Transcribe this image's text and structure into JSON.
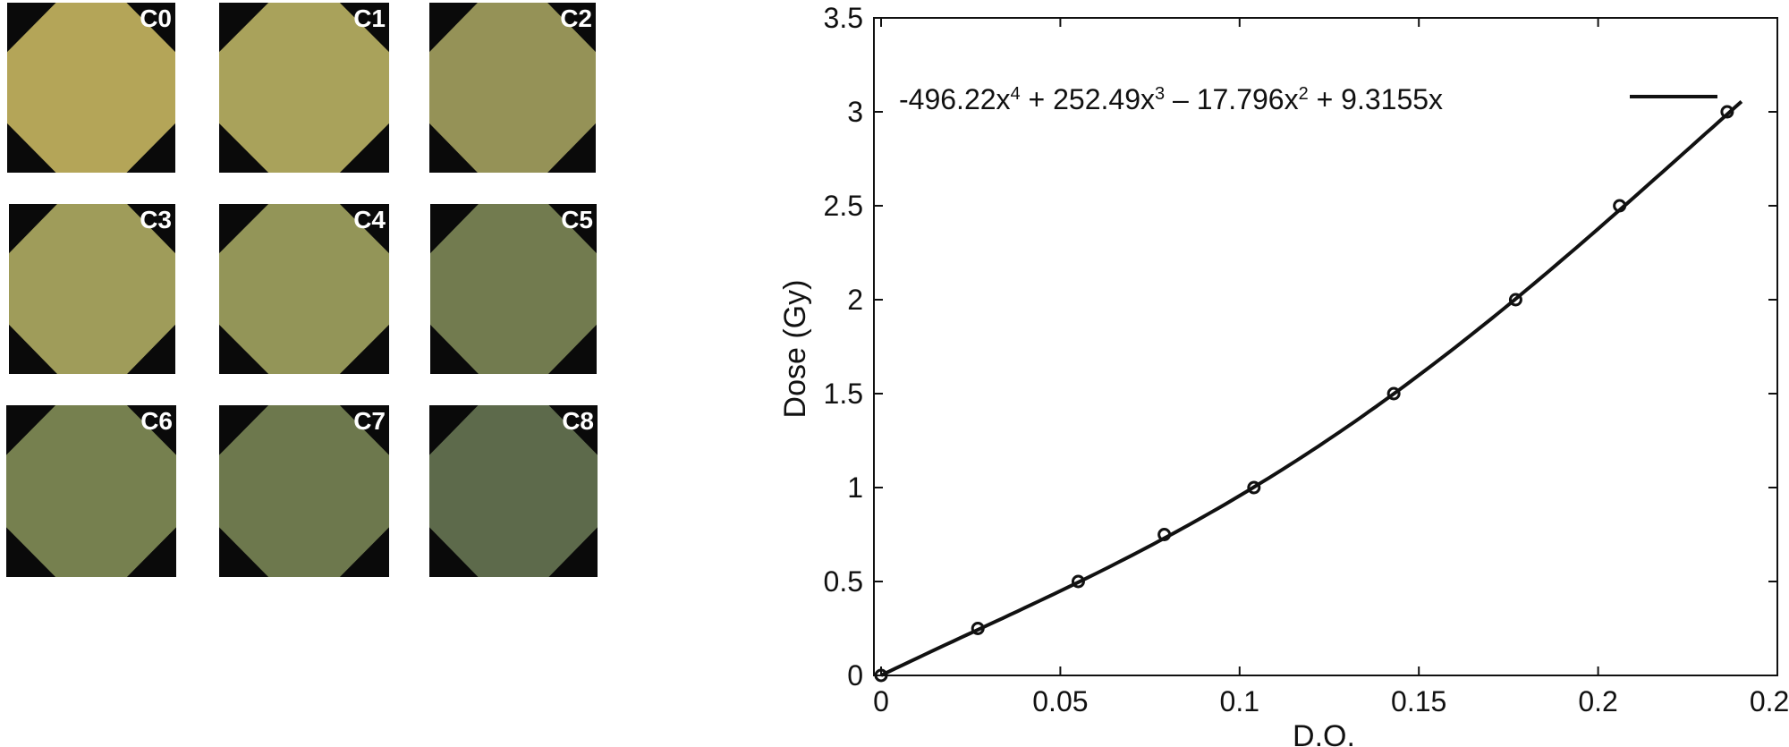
{
  "films": [
    {
      "label": "C0",
      "color": "#b4a558"
    },
    {
      "label": "C1",
      "color": "#a9a25b"
    },
    {
      "label": "C2",
      "color": "#959257"
    },
    {
      "label": "C3",
      "color": "#9f9c5a"
    },
    {
      "label": "C4",
      "color": "#939558"
    },
    {
      "label": "C5",
      "color": "#727b4f"
    },
    {
      "label": "C6",
      "color": "#76804f"
    },
    {
      "label": "C7",
      "color": "#6d784d"
    },
    {
      "label": "C8",
      "color": "#5d6a4b"
    }
  ],
  "chart_data": {
    "type": "scatter",
    "xlabel": "D.O.",
    "ylabel": "Dose (Gy)",
    "xlim": [
      0,
      0.25
    ],
    "ylim": [
      0,
      3.5
    ],
    "xticks": [
      "0",
      "0.05",
      "0.1",
      "0.15",
      "0.2",
      "0.25"
    ],
    "yticks": [
      "0",
      "0.5",
      "1",
      "1.5",
      "2",
      "2.5",
      "3",
      "3.5"
    ],
    "grid": false,
    "series": [
      {
        "x": [
          0,
          0.027,
          0.055,
          0.079,
          0.104,
          0.143,
          0.177,
          0.206,
          0.236
        ],
        "y": [
          0,
          0.25,
          0.5,
          0.75,
          1.0,
          1.5,
          2.0,
          2.5,
          3.0
        ],
        "marker": "open-circle",
        "color": "#111111"
      }
    ],
    "fit": {
      "coefficients": {
        "x4": -496.22,
        "x3": 252.49,
        "x2": -17.796,
        "x1": 9.3155
      },
      "domain": [
        0,
        0.24
      ],
      "label_parts": [
        "-496.22x",
        "4",
        " + 252.49x",
        "3",
        " – 17.796x",
        "2",
        " + 9.3155x"
      ]
    }
  }
}
